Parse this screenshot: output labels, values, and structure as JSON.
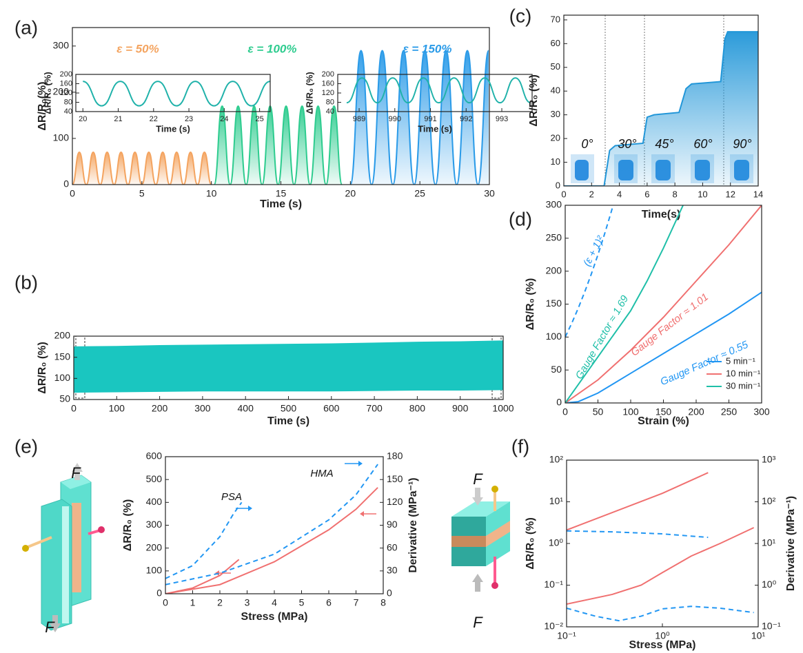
{
  "chart_data": [
    {
      "type": "line",
      "panel_label": "(a)",
      "xlabel": "Time (s)",
      "ylabel": "ΔR/R₀(%)",
      "smooth": true,
      "xlim": [
        0,
        30
      ],
      "ylim": [
        0,
        340
      ],
      "xticks": [
        0,
        5,
        10,
        15,
        20,
        25,
        30
      ],
      "yticks": [
        0,
        100,
        200,
        300
      ],
      "annotations": [
        {
          "text": "ε = 50%"
        },
        {
          "text": "ε = 100%"
        },
        {
          "text": "ε = 150%"
        }
      ],
      "series": [
        {
          "color": "#f4a460",
          "fill": true,
          "x": [
            0,
            0.5,
            1,
            1.5,
            2,
            2.5,
            3,
            3.5,
            4,
            4.5,
            5,
            5.5,
            6,
            6.5,
            7,
            7.5,
            8,
            8.5,
            9,
            9.5,
            10
          ],
          "values": [
            0,
            70,
            0,
            70,
            0,
            70,
            0,
            70,
            0,
            70,
            0,
            70,
            0,
            70,
            0,
            70,
            0,
            70,
            0,
            70,
            0
          ]
        },
        {
          "color": "#2ecc8f",
          "fill": true,
          "x": [
            10.2,
            10.775,
            11.35,
            11.925,
            12.5,
            13.075,
            13.65,
            14.225,
            14.8,
            15.375,
            15.95,
            16.525,
            17.1,
            17.675,
            18.25,
            18.825,
            19.4
          ],
          "values": [
            0,
            170,
            0,
            170,
            0,
            170,
            0,
            170,
            0,
            170,
            0,
            170,
            0,
            170,
            0,
            170,
            0
          ]
        },
        {
          "color": "#2b9be8",
          "fill": true,
          "x": [
            20,
            20.765,
            21.53,
            22.295,
            23.06,
            23.825,
            24.59,
            25.355,
            26.12,
            26.885,
            27.65,
            28.415,
            29.18,
            29.945
          ],
          "values": [
            0,
            290,
            0,
            290,
            0,
            290,
            0,
            290,
            0,
            290,
            0,
            290,
            0,
            290
          ]
        }
      ]
    },
    {
      "type": "line",
      "panel_label": "(b)",
      "xlabel": "Time (s)",
      "ylabel": "ΔR/R₀ (%)",
      "band": true,
      "xlim": [
        0,
        1000
      ],
      "ylim": [
        50,
        200
      ],
      "xticks": [
        0,
        100,
        200,
        300,
        400,
        500,
        600,
        700,
        800,
        900,
        1000
      ],
      "yticks": [
        50,
        100,
        150,
        200
      ],
      "series": [
        {
          "color": "#1ac6c0",
          "x": [
            0,
            100,
            200,
            300,
            400,
            500,
            600,
            700,
            800,
            900,
            1000
          ],
          "values": [
            175,
            176,
            178,
            179,
            180,
            181,
            182,
            184,
            186,
            187,
            189
          ]
        },
        {
          "color": "#1ac6c0",
          "x": [
            0,
            100,
            200,
            300,
            400,
            500,
            600,
            700,
            800,
            900,
            1000
          ],
          "values": [
            67,
            68,
            69,
            70,
            70,
            70,
            70,
            71,
            72,
            72,
            73
          ]
        }
      ]
    },
    {
      "type": "line",
      "xlabel": "Time (s)",
      "ylabel": "ΔR/R₀ (%)",
      "smooth": true,
      "xlim": [
        19.8,
        25.3
      ],
      "ylim": [
        40,
        200
      ],
      "xticks": [
        20,
        21,
        22,
        23,
        24,
        25
      ],
      "yticks": [
        40,
        80,
        120,
        160,
        200
      ],
      "series": [
        {
          "color": "#20b2aa",
          "x": [
            20,
            20.53,
            21.06,
            21.59,
            22.12,
            22.65,
            23.18,
            23.71,
            24.24,
            24.77,
            25.3
          ],
          "values": [
            170,
            65,
            170,
            65,
            170,
            65,
            170,
            65,
            170,
            65,
            170
          ]
        }
      ]
    },
    {
      "type": "line",
      "xlabel": "Time (s)",
      "ylabel": "ΔR/R₀ (%)",
      "smooth": true,
      "xlim": [
        988.4,
        993.85
      ],
      "ylim": [
        40,
        200
      ],
      "xticks": [
        989,
        990,
        991,
        992,
        993
      ],
      "yticks": [
        40,
        80,
        120,
        160,
        200
      ],
      "series": [
        {
          "color": "#20b2aa",
          "x": [
            988.65,
            989.08,
            989.51,
            989.94,
            990.37,
            990.8,
            991.23,
            991.66,
            992.09,
            992.52,
            992.95,
            993.38,
            993.81
          ],
          "values": [
            78,
            185,
            78,
            185,
            78,
            185,
            78,
            185,
            78,
            185,
            78,
            185,
            78
          ]
        }
      ]
    },
    {
      "type": "line",
      "panel_label": "(c)",
      "xlabel": "Time(s)",
      "ylabel": "ΔR/R₀ (%)",
      "xlim": [
        0,
        14
      ],
      "ylim": [
        0,
        72
      ],
      "xticks": [
        0,
        2,
        4,
        6,
        8,
        10,
        12,
        14
      ],
      "yticks": [
        0,
        10,
        20,
        30,
        40,
        50,
        60,
        70
      ],
      "annotations": [
        {
          "text": "0°"
        },
        {
          "text": "30°"
        },
        {
          "text": "45°"
        },
        {
          "text": "60°"
        },
        {
          "text": "90°"
        }
      ],
      "series": [
        {
          "color": "#2196d8",
          "fill": true,
          "x": [
            0,
            2.9,
            3.3,
            3.7,
            5.7,
            6.0,
            6.5,
            8.3,
            8.8,
            9.2,
            11.3,
            11.6,
            11.8,
            14
          ],
          "values": [
            0,
            0,
            15,
            17,
            18,
            29,
            30,
            31,
            41,
            43,
            44,
            62,
            65,
            65
          ]
        }
      ]
    },
    {
      "type": "line",
      "panel_label": "(d)",
      "xlabel": "Strain (%)",
      "ylabel": "ΔR/R₀ (%)",
      "legend": "lower right",
      "xlim": [
        0,
        300
      ],
      "ylim": [
        0,
        300
      ],
      "xticks": [
        0,
        50,
        100,
        150,
        200,
        250,
        300
      ],
      "yticks": [
        0,
        50,
        100,
        150,
        200,
        250,
        300
      ],
      "annotations": [
        {
          "text": "(ε + 1)²"
        },
        {
          "text": "Gauge Factor ≈ 1.69"
        },
        {
          "text": "Gauge Factor ≈ 1.01"
        },
        {
          "text": "Gauge Factor ≈ 0.55"
        }
      ],
      "series": [
        {
          "name": "5 min⁻¹",
          "color": "#2196f3",
          "x": [
            0,
            20,
            50,
            100,
            150,
            200,
            250,
            300
          ],
          "values": [
            0,
            2,
            15,
            45,
            75,
            105,
            135,
            168
          ]
        },
        {
          "name": "10 min⁻¹",
          "color": "#f07070",
          "x": [
            0,
            50,
            100,
            150,
            200,
            250,
            300
          ],
          "values": [
            0,
            35,
            80,
            130,
            185,
            240,
            300
          ]
        },
        {
          "name": "30 min⁻¹",
          "color": "#1fbfa8",
          "x": [
            0,
            50,
            100,
            125,
            150,
            180
          ],
          "values": [
            0,
            70,
            140,
            185,
            235,
            300
          ]
        },
        {
          "color": "#2196f3",
          "dashed": true,
          "x": [
            0,
            10,
            20,
            30,
            40,
            50,
            60,
            70,
            73
          ],
          "values": [
            100,
            121,
            144,
            169,
            196,
            225,
            256,
            289,
            299.3
          ]
        }
      ]
    },
    {
      "type": "line",
      "panel_label": "(e)",
      "xlabel": "Stress (MPa)",
      "ylabel": "ΔR/R₀ (%)",
      "y2label": "Derivative (MPa⁻¹)",
      "xlim": [
        0,
        8
      ],
      "ylim": [
        0,
        600
      ],
      "y2lim": [
        0,
        180
      ],
      "xticks": [
        0,
        1,
        2,
        3,
        4,
        5,
        6,
        7,
        8
      ],
      "yticks": [
        0,
        100,
        200,
        300,
        400,
        500,
        600
      ],
      "y2ticks": [
        0,
        30,
        60,
        90,
        120,
        150,
        180
      ],
      "annotations": [
        {
          "text": "PSA"
        },
        {
          "text": "HMA"
        },
        {
          "text": "F"
        },
        {
          "text": "F"
        }
      ],
      "series": [
        {
          "color": "#f07070",
          "x": [
            0,
            1,
            2,
            2.7
          ],
          "values": [
            0,
            25,
            80,
            150
          ]
        },
        {
          "color": "#f07070",
          "x": [
            0,
            2,
            4,
            6,
            7,
            7.8
          ],
          "values": [
            0,
            40,
            140,
            280,
            370,
            465
          ]
        },
        {
          "color": "#2196f3",
          "dashed": true,
          "axis": "y2",
          "x": [
            0,
            1,
            2,
            2.5,
            2.8
          ],
          "values": [
            20,
            37,
            75,
            105,
            120
          ]
        },
        {
          "color": "#2196f3",
          "dashed": true,
          "axis": "y2",
          "x": [
            0,
            2,
            4,
            6,
            7,
            7.8
          ],
          "values": [
            12,
            27,
            52,
            97,
            130,
            170
          ]
        }
      ]
    },
    {
      "type": "line",
      "panel_label": "(f)",
      "xlabel": "Stress (MPa)",
      "ylabel": "ΔR/R₀ (%)",
      "y2label": "Derivative (MPa⁻¹)",
      "xscale": "log",
      "yscale": "log",
      "y2scale": "log",
      "xlim": [
        0.1,
        10
      ],
      "ylim": [
        0.01,
        100
      ],
      "y2lim": [
        0.1,
        1000
      ],
      "xticks": [
        {
          "value": 0.1,
          "label": "10⁻¹"
        },
        {
          "value": 1,
          "label": "10⁰"
        },
        {
          "value": 10,
          "label": "10¹"
        }
      ],
      "yticks": [
        {
          "value": 0.01,
          "label": "10⁻²"
        },
        {
          "value": 0.1,
          "label": "10⁻¹"
        },
        {
          "value": 1,
          "label": "10⁰"
        },
        {
          "value": 10,
          "label": "10¹"
        },
        {
          "value": 100,
          "label": "10²"
        }
      ],
      "y2ticks": [
        {
          "value": 0.1,
          "label": "10⁻¹"
        },
        {
          "value": 1,
          "label": "10⁰"
        },
        {
          "value": 10,
          "label": "10¹"
        },
        {
          "value": 100,
          "label": "10²"
        },
        {
          "value": 1000,
          "label": "10³"
        }
      ],
      "annotations": [
        {
          "text": "F"
        },
        {
          "text": "F"
        }
      ],
      "series": [
        {
          "color": "#f07070",
          "x": [
            0.1,
            1,
            3
          ],
          "values": [
            2.1,
            16,
            50
          ]
        },
        {
          "color": "#f07070",
          "x": [
            0.1,
            0.3,
            0.6,
            1,
            2,
            4,
            9
          ],
          "values": [
            0.035,
            0.06,
            0.1,
            0.2,
            0.5,
            1.0,
            2.4
          ]
        },
        {
          "color": "#2196f3",
          "dashed": true,
          "axis": "y2",
          "x": [
            0.1,
            0.3,
            1,
            3
          ],
          "values": [
            20,
            19,
            17,
            14
          ]
        },
        {
          "color": "#2196f3",
          "dashed": true,
          "axis": "y2",
          "x": [
            0.1,
            0.2,
            0.35,
            0.6,
            1,
            2,
            4,
            9
          ],
          "values": [
            0.28,
            0.18,
            0.14,
            0.18,
            0.27,
            0.31,
            0.28,
            0.22
          ]
        }
      ]
    }
  ]
}
